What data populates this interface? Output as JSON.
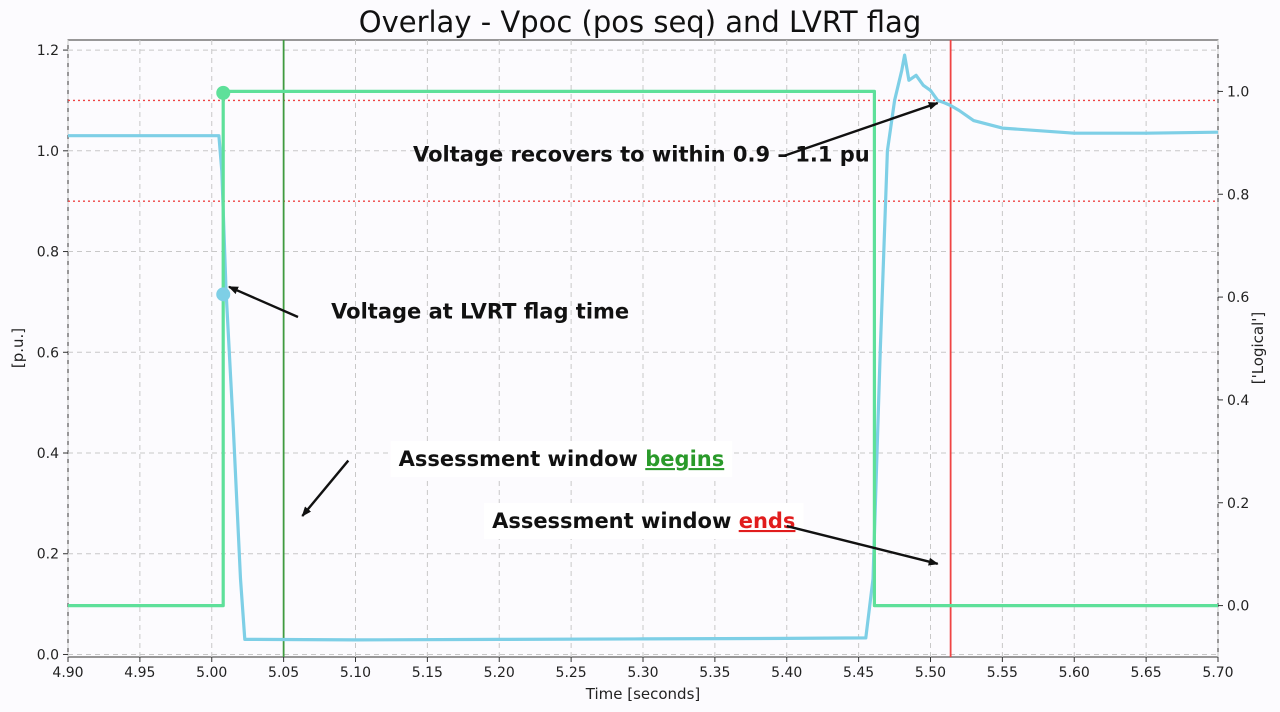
{
  "chart_data": {
    "type": "line",
    "title": "Overlay - Vpoc (pos seq) and LVRT flag",
    "xlabel": "Time [seconds]",
    "ylabel": "[p.u.]",
    "y2label": "['Logical']",
    "xlim": [
      4.9,
      5.7
    ],
    "ylim": [
      -0.005,
      1.22
    ],
    "y2lim": [
      -0.1,
      1.1
    ],
    "x_ticks": [
      "4.90",
      "4.95",
      "5.00",
      "5.05",
      "5.10",
      "5.15",
      "5.20",
      "5.25",
      "5.30",
      "5.35",
      "5.40",
      "5.45",
      "5.50",
      "5.55",
      "5.60",
      "5.65",
      "5.70"
    ],
    "y_ticks": [
      "0.0",
      "0.2",
      "0.4",
      "0.6",
      "0.8",
      "1.0",
      "1.2"
    ],
    "y2_ticks": [
      "0.0",
      "0.2",
      "0.4",
      "0.6",
      "0.8",
      "1.0"
    ],
    "grid": true,
    "series": [
      {
        "axis": "left",
        "color": "#7ecfe6",
        "x": [
          4.9,
          5.005,
          5.007,
          5.01,
          5.015,
          5.02,
          5.023,
          5.03,
          5.1,
          5.2,
          5.3,
          5.4,
          5.455,
          5.46,
          5.465,
          5.47,
          5.475,
          5.48,
          5.482,
          5.485,
          5.49,
          5.495,
          5.5,
          5.505,
          5.51,
          5.514,
          5.52,
          5.53,
          5.55,
          5.6,
          5.65,
          5.7
        ],
        "values": [
          1.03,
          1.03,
          0.96,
          0.72,
          0.45,
          0.15,
          0.03,
          0.03,
          0.029,
          0.03,
          0.031,
          0.032,
          0.033,
          0.15,
          0.6,
          1.0,
          1.1,
          1.16,
          1.19,
          1.14,
          1.15,
          1.13,
          1.12,
          1.1,
          1.095,
          1.09,
          1.08,
          1.06,
          1.045,
          1.035,
          1.035,
          1.037
        ]
      },
      {
        "axis": "right",
        "color": "#5ee09a",
        "x": [
          4.9,
          5.008,
          5.008,
          5.461,
          5.461,
          5.7
        ],
        "values": [
          0,
          0,
          1,
          1,
          0,
          0
        ]
      }
    ],
    "markers": [
      {
        "x": 5.008,
        "value": 1.115,
        "axis": "left",
        "color": "#5ee09a"
      },
      {
        "x": 5.008,
        "value": 0.715,
        "axis": "left",
        "color": "#7ecfe6"
      }
    ],
    "hlines": [
      {
        "value": 1.1,
        "color": "#ef4444",
        "style": "dotted"
      },
      {
        "value": 0.9,
        "color": "#ef4444",
        "style": "dotted"
      }
    ],
    "vlines": [
      {
        "x": 5.05,
        "color": "#3f9a3f"
      },
      {
        "x": 5.514,
        "color": "#ef4444"
      }
    ],
    "annotations": [
      {
        "text": "Voltage recovers to within 0.9 – 1.1 pu",
        "text_x": 5.14,
        "text_y": 0.995,
        "arrow_from": [
          5.398,
          0.99
        ],
        "arrow_to": [
          5.505,
          1.095
        ]
      },
      {
        "text": "Voltage at LVRT flag time",
        "text_x": 5.083,
        "text_y": 0.683,
        "arrow_from": [
          5.06,
          0.67
        ],
        "arrow_to": [
          5.012,
          0.73
        ]
      },
      {
        "text": "Assessment window ",
        "highlight": "begins",
        "highlight_color": "#2a9a2a",
        "text_x": 5.13,
        "text_y": 0.39,
        "arrow_from": [
          5.095,
          0.385
        ],
        "arrow_to": [
          5.063,
          0.275
        ]
      },
      {
        "text": "Assessment window ",
        "highlight": "ends",
        "highlight_color": "#e11d1d",
        "text_x": 5.195,
        "text_y": 0.267,
        "arrow_from": [
          5.4,
          0.255
        ],
        "arrow_to": [
          5.505,
          0.18
        ]
      }
    ]
  }
}
